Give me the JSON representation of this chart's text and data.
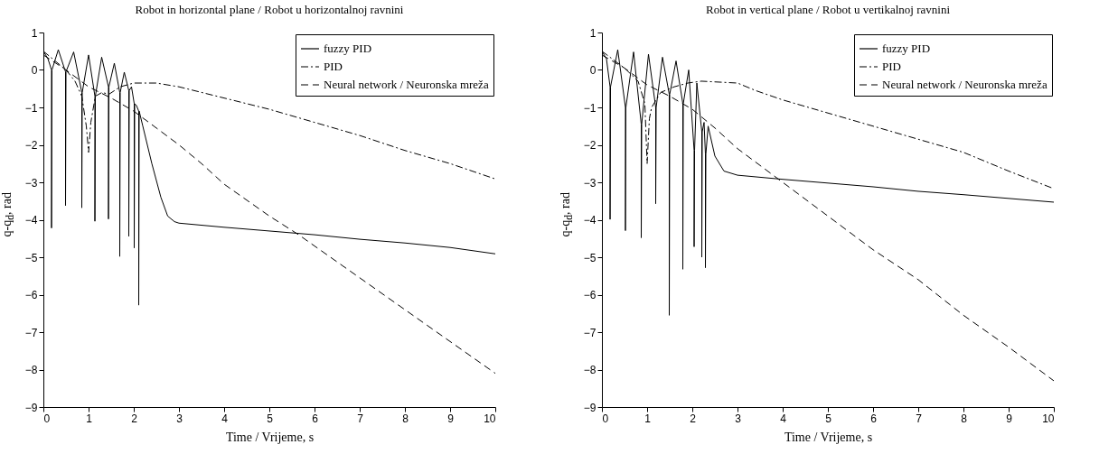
{
  "chart_data": [
    {
      "type": "line",
      "title": "Robot in horizontal plane / Robot u horizontalnoj ravnini",
      "xlabel": "Time / Vrijeme, s",
      "ylabel": "q-q$_{d}$, rad",
      "xlim": [
        0,
        10
      ],
      "ylim": [
        -9,
        1
      ],
      "xticks": [
        0,
        1,
        2,
        3,
        4,
        5,
        6,
        7,
        8,
        9,
        10
      ],
      "yticks": [
        -9,
        -8,
        -7,
        -6,
        -5,
        -4,
        -3,
        -2,
        -1,
        0,
        1
      ],
      "grid": false,
      "legend": "top right",
      "series": [
        {
          "name": "fuzzy PID",
          "color": "#000000",
          "line_style": "solid",
          "x": [
            0,
            0.1,
            0.18,
            0.18,
            0.19,
            0.33,
            0.49,
            0.49,
            0.5,
            0.67,
            0.85,
            0.85,
            0.86,
            1.0,
            1.14,
            1.14,
            1.15,
            1.29,
            1.44,
            1.44,
            1.45,
            1.57,
            1.69,
            1.69,
            1.7,
            1.79,
            1.89,
            1.89,
            1.9,
            1.95,
            2.01,
            2.01,
            2.02,
            2.06,
            2.11,
            2.11,
            2.12,
            2.2,
            2.4,
            2.6,
            2.75,
            2.9,
            3,
            4,
            5,
            6,
            7,
            8,
            9,
            10
          ],
          "values": [
            0.5,
            0.3,
            0,
            -4.22,
            0,
            0.54,
            -0.05,
            -3.62,
            -0.05,
            0.48,
            -0.6,
            -3.68,
            -0.6,
            0.4,
            -0.7,
            -4.04,
            -0.7,
            0.34,
            -0.45,
            -3.98,
            -0.45,
            0.18,
            -0.6,
            -4.98,
            -0.6,
            -0.06,
            -0.55,
            -4.44,
            -0.55,
            -0.45,
            -0.9,
            -4.75,
            -0.9,
            -0.95,
            -1.1,
            -6.28,
            -1.1,
            -1.5,
            -2.5,
            -3.4,
            -3.9,
            -4.05,
            -4.09,
            -4.2,
            -4.3,
            -4.4,
            -4.52,
            -4.62,
            -4.74,
            -4.91
          ]
        },
        {
          "name": "PID",
          "color": "#000000",
          "line_style": "dashdot",
          "x": [
            0,
            0.3,
            0.5,
            0.7,
            0.85,
            0.95,
            1.0,
            1.05,
            1.15,
            1.3,
            1.45,
            1.7,
            2,
            2.5,
            3,
            3.5,
            4,
            5,
            6,
            7,
            8,
            9,
            10
          ],
          "values": [
            0.5,
            0.2,
            0,
            -0.3,
            -0.7,
            -1.5,
            -2.2,
            -1.4,
            -0.7,
            -0.6,
            -0.65,
            -0.45,
            -0.35,
            -0.35,
            -0.45,
            -0.6,
            -0.75,
            -1.05,
            -1.4,
            -1.75,
            -2.15,
            -2.5,
            -2.91
          ]
        },
        {
          "name": "Neural network / Neuronska mreža",
          "color": "#000000",
          "line_style": "dashed",
          "x": [
            0,
            0.5,
            1,
            1.5,
            2,
            2.5,
            3,
            3.5,
            4,
            5,
            5.65,
            6,
            7,
            8,
            9,
            10
          ],
          "values": [
            0.4,
            0,
            -0.45,
            -0.75,
            -1.1,
            -1.55,
            -2.0,
            -2.5,
            -3.05,
            -3.9,
            -4.4,
            -4.7,
            -5.55,
            -6.4,
            -7.25,
            -8.1
          ]
        }
      ]
    },
    {
      "type": "line",
      "title": "Robot in vertical plane / Robot u vertikalnoj ravnini",
      "xlabel": "Time / Vrijeme, s",
      "ylabel": "q-q$_{d}$, rad",
      "xlim": [
        0,
        10
      ],
      "ylim": [
        -9,
        1
      ],
      "xticks": [
        0,
        1,
        2,
        3,
        4,
        5,
        6,
        7,
        8,
        9,
        10
      ],
      "yticks": [
        -9,
        -8,
        -7,
        -6,
        -5,
        -4,
        -3,
        -2,
        -1,
        0,
        1
      ],
      "grid": false,
      "legend": "top right",
      "series": [
        {
          "name": "fuzzy PID",
          "color": "#000000",
          "line_style": "solid",
          "x": [
            0,
            0.1,
            0.18,
            0.18,
            0.19,
            0.35,
            0.52,
            0.52,
            0.53,
            0.7,
            0.87,
            0.87,
            0.88,
            1.03,
            1.19,
            1.19,
            1.2,
            1.34,
            1.49,
            1.49,
            1.5,
            1.64,
            1.79,
            1.79,
            1.8,
            1.92,
            2.04,
            2.04,
            2.05,
            2.1,
            2.21,
            2.21,
            2.22,
            2.26,
            2.29,
            2.29,
            2.3,
            2.35,
            2.5,
            2.7,
            3,
            4,
            5,
            6,
            7,
            8,
            9,
            10
          ],
          "values": [
            0.5,
            0.3,
            -0.45,
            -3.99,
            -0.45,
            0.54,
            -1.0,
            -4.29,
            -1.0,
            0.48,
            -1.45,
            -4.48,
            -1.45,
            0.42,
            -1.0,
            -3.57,
            -1.0,
            0.34,
            -0.65,
            -6.55,
            -0.65,
            0.24,
            -0.9,
            -5.32,
            -0.9,
            0,
            -2.15,
            -4.72,
            -2.15,
            -0.35,
            -1.65,
            -5.0,
            -1.65,
            -1.4,
            -2.25,
            -5.28,
            -2.25,
            -1.5,
            -2.3,
            -2.7,
            -2.81,
            -2.92,
            -3.02,
            -3.12,
            -3.24,
            -3.33,
            -3.43,
            -3.53
          ]
        },
        {
          "name": "PID",
          "color": "#000000",
          "line_style": "dashdot",
          "x": [
            0,
            0.5,
            0.8,
            0.95,
            1.0,
            1.05,
            1.1,
            1.3,
            1.6,
            1.9,
            2.2,
            3,
            3.4,
            4,
            5,
            6,
            7,
            8,
            9,
            10
          ],
          "values": [
            0.5,
            0.05,
            -0.3,
            -0.9,
            -2.5,
            -1.3,
            -1.0,
            -0.6,
            -0.45,
            -0.35,
            -0.3,
            -0.35,
            -0.55,
            -0.8,
            -1.15,
            -1.5,
            -1.85,
            -2.2,
            -2.7,
            -3.17
          ]
        },
        {
          "name": "Neural network / Neuronska mreža",
          "color": "#000000",
          "line_style": "dashed",
          "x": [
            0,
            0.5,
            1,
            1.5,
            2,
            2.5,
            3,
            3.5,
            4,
            5,
            6,
            7,
            8,
            9,
            10
          ],
          "values": [
            0.4,
            0.05,
            -0.4,
            -0.7,
            -1.05,
            -1.55,
            -2.1,
            -2.55,
            -3.0,
            -3.9,
            -4.8,
            -5.6,
            -6.55,
            -7.4,
            -8.3
          ]
        }
      ]
    }
  ]
}
